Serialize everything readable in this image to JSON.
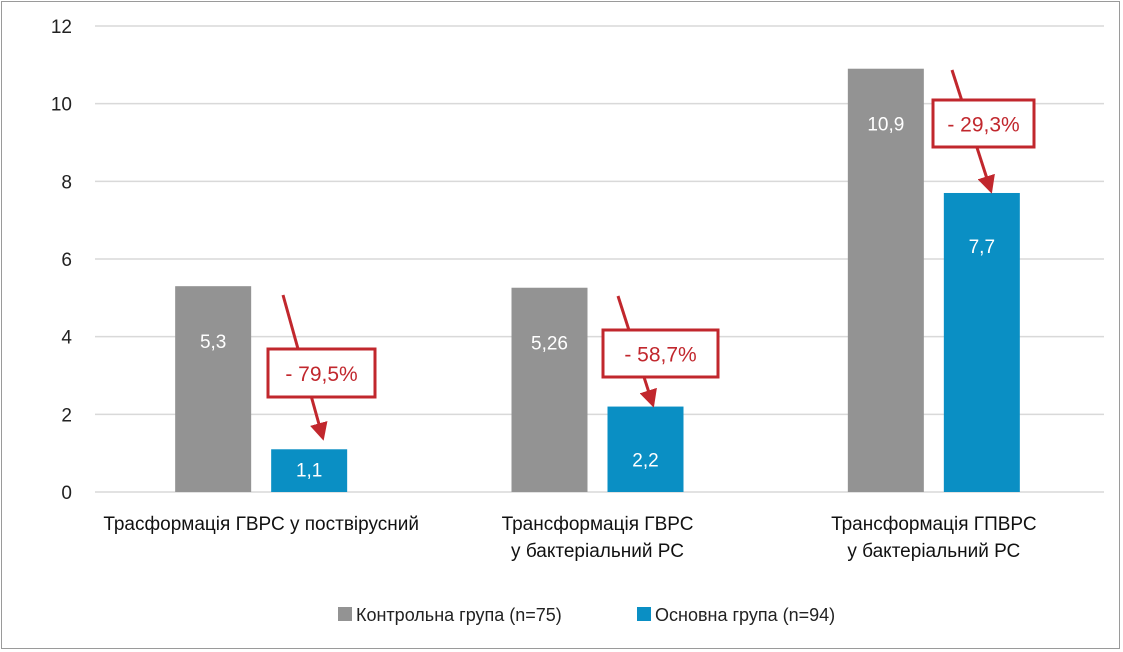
{
  "chart_data": {
    "type": "bar",
    "title": "",
    "xlabel": "",
    "ylabel": "",
    "ylim": [
      0,
      12
    ],
    "yticks": [
      0,
      2,
      4,
      6,
      8,
      10,
      12
    ],
    "grid": true,
    "categories": [
      [
        "Трасформація  ГВРС у поствірусний"
      ],
      [
        "Трансформація ГВРС",
        "у бактеріальний РС"
      ],
      [
        "Трансформація ГПВРС",
        "у бактеріальний РС"
      ]
    ],
    "series": [
      {
        "name": "Контрольна група (n=75)",
        "color": "#939393",
        "values": [
          5.3,
          5.26,
          10.9
        ],
        "labels": [
          "5,3",
          "5,26",
          "10,9"
        ]
      },
      {
        "name": "Основна група (n=94)",
        "color": "#0a8fc4",
        "values": [
          1.1,
          2.2,
          7.7
        ],
        "labels": [
          "1,1",
          "2,2",
          "7,7"
        ]
      }
    ],
    "annotations": [
      "- 79,5%",
      "- 58,7%",
      "- 29,3%"
    ],
    "annotation_color": "#c1272d",
    "legend": "bottom-center"
  }
}
